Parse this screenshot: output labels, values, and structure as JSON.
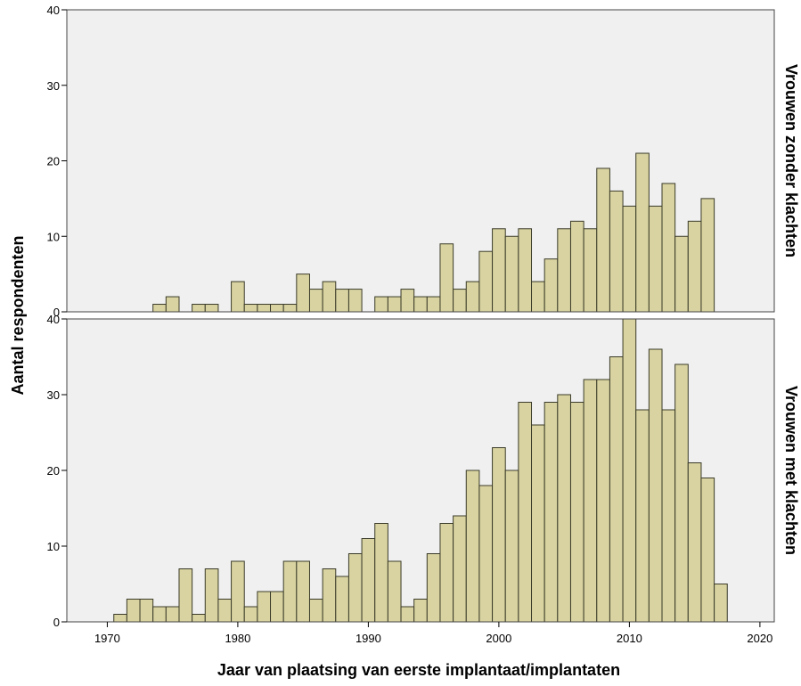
{
  "chart_data": {
    "type": "bar",
    "subtype": "histogram-panels",
    "xlabel": "Jaar van plaatsing van eerste implantaat/implantaten",
    "ylabel": "Aantal respondenten",
    "xlim": [
      1966.9,
      2021.1
    ],
    "xticks": [
      1970,
      1980,
      1990,
      2000,
      2010,
      2020
    ],
    "bin_width": 1,
    "grid": false,
    "colors": {
      "bar_fill": "#d8d3a0",
      "bar_stroke": "#3b3b2a",
      "panel_bg": "#f0f0f0"
    },
    "panels": [
      {
        "label": "Vrouwen zonder klachten",
        "ylim": [
          0,
          40
        ],
        "yticks": [
          0,
          10,
          20,
          30,
          40
        ],
        "bins": [
          {
            "x": 1974,
            "y": 1
          },
          {
            "x": 1975,
            "y": 2
          },
          {
            "x": 1977,
            "y": 1
          },
          {
            "x": 1978,
            "y": 1
          },
          {
            "x": 1980,
            "y": 4
          },
          {
            "x": 1981,
            "y": 1
          },
          {
            "x": 1982,
            "y": 1
          },
          {
            "x": 1983,
            "y": 1
          },
          {
            "x": 1984,
            "y": 1
          },
          {
            "x": 1985,
            "y": 5
          },
          {
            "x": 1986,
            "y": 3
          },
          {
            "x": 1987,
            "y": 4
          },
          {
            "x": 1988,
            "y": 3
          },
          {
            "x": 1989,
            "y": 3
          },
          {
            "x": 1991,
            "y": 2
          },
          {
            "x": 1992,
            "y": 2
          },
          {
            "x": 1993,
            "y": 3
          },
          {
            "x": 1994,
            "y": 2
          },
          {
            "x": 1995,
            "y": 2
          },
          {
            "x": 1996,
            "y": 9
          },
          {
            "x": 1997,
            "y": 3
          },
          {
            "x": 1998,
            "y": 4
          },
          {
            "x": 1999,
            "y": 8
          },
          {
            "x": 2000,
            "y": 11
          },
          {
            "x": 2001,
            "y": 10
          },
          {
            "x": 2002,
            "y": 11
          },
          {
            "x": 2003,
            "y": 4
          },
          {
            "x": 2004,
            "y": 7
          },
          {
            "x": 2005,
            "y": 11
          },
          {
            "x": 2006,
            "y": 12
          },
          {
            "x": 2007,
            "y": 11
          },
          {
            "x": 2008,
            "y": 19
          },
          {
            "x": 2009,
            "y": 16
          },
          {
            "x": 2010,
            "y": 14
          },
          {
            "x": 2011,
            "y": 21
          },
          {
            "x": 2012,
            "y": 14
          },
          {
            "x": 2013,
            "y": 17
          },
          {
            "x": 2014,
            "y": 10
          },
          {
            "x": 2015,
            "y": 12
          },
          {
            "x": 2016,
            "y": 15
          }
        ]
      },
      {
        "label": "Vrouwen met klachten",
        "ylim": [
          0,
          40
        ],
        "yticks": [
          0,
          10,
          20,
          30,
          40
        ],
        "bins": [
          {
            "x": 1971,
            "y": 1
          },
          {
            "x": 1972,
            "y": 3
          },
          {
            "x": 1973,
            "y": 3
          },
          {
            "x": 1974,
            "y": 2
          },
          {
            "x": 1975,
            "y": 2
          },
          {
            "x": 1976,
            "y": 7
          },
          {
            "x": 1977,
            "y": 1
          },
          {
            "x": 1978,
            "y": 7
          },
          {
            "x": 1979,
            "y": 3
          },
          {
            "x": 1980,
            "y": 8
          },
          {
            "x": 1981,
            "y": 2
          },
          {
            "x": 1982,
            "y": 4
          },
          {
            "x": 1983,
            "y": 4
          },
          {
            "x": 1984,
            "y": 8
          },
          {
            "x": 1985,
            "y": 8
          },
          {
            "x": 1986,
            "y": 3
          },
          {
            "x": 1987,
            "y": 7
          },
          {
            "x": 1988,
            "y": 6
          },
          {
            "x": 1989,
            "y": 9
          },
          {
            "x": 1990,
            "y": 11
          },
          {
            "x": 1991,
            "y": 13
          },
          {
            "x": 1992,
            "y": 8
          },
          {
            "x": 1993,
            "y": 2
          },
          {
            "x": 1994,
            "y": 3
          },
          {
            "x": 1995,
            "y": 9
          },
          {
            "x": 1996,
            "y": 13
          },
          {
            "x": 1997,
            "y": 14
          },
          {
            "x": 1998,
            "y": 20
          },
          {
            "x": 1999,
            "y": 18
          },
          {
            "x": 2000,
            "y": 23
          },
          {
            "x": 2001,
            "y": 20
          },
          {
            "x": 2002,
            "y": 29
          },
          {
            "x": 2003,
            "y": 26
          },
          {
            "x": 2004,
            "y": 29
          },
          {
            "x": 2005,
            "y": 30
          },
          {
            "x": 2006,
            "y": 29
          },
          {
            "x": 2007,
            "y": 32
          },
          {
            "x": 2008,
            "y": 32
          },
          {
            "x": 2009,
            "y": 35
          },
          {
            "x": 2010,
            "y": 40
          },
          {
            "x": 2011,
            "y": 28
          },
          {
            "x": 2012,
            "y": 36
          },
          {
            "x": 2013,
            "y": 28
          },
          {
            "x": 2014,
            "y": 34
          },
          {
            "x": 2015,
            "y": 21
          },
          {
            "x": 2016,
            "y": 19
          },
          {
            "x": 2017,
            "y": 5
          }
        ]
      }
    ]
  }
}
